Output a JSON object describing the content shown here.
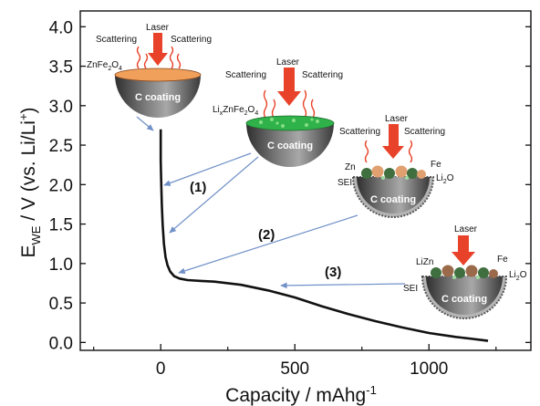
{
  "chart_data": {
    "type": "line",
    "xlabel": "Capacity / mAhg",
    "xlabel_sup": "-1",
    "ylabel_parts": [
      "E",
      "WE",
      "/ V (vs. Li/Li",
      "+",
      ")"
    ],
    "xlim": [
      -300,
      1380
    ],
    "ylim": [
      -0.1,
      4.2
    ],
    "x_ticks": [
      0,
      500,
      1000
    ],
    "y_ticks": [
      0.0,
      0.5,
      1.0,
      1.5,
      2.0,
      2.5,
      3.0,
      3.5,
      4.0
    ],
    "x_tick_labels": [
      "0",
      "500",
      "1000"
    ],
    "y_tick_labels": [
      "0.0",
      "0.5",
      "1.0",
      "1.5",
      "2.0",
      "2.5",
      "3.0",
      "3.5",
      "4.0"
    ],
    "grid": false,
    "series": [
      {
        "color": "#111111",
        "x": [
          0,
          0,
          2,
          4,
          7,
          12,
          18,
          25,
          35,
          50,
          70,
          100,
          150,
          200,
          300,
          400,
          500,
          600,
          700,
          800,
          900,
          1000,
          1100,
          1150,
          1200,
          1220
        ],
        "y": [
          2.7,
          2.3,
          2.0,
          1.75,
          1.5,
          1.25,
          1.08,
          0.98,
          0.9,
          0.84,
          0.81,
          0.79,
          0.78,
          0.77,
          0.73,
          0.66,
          0.57,
          0.46,
          0.36,
          0.27,
          0.19,
          0.12,
          0.07,
          0.05,
          0.03,
          0.02
        ]
      }
    ],
    "annotations": {
      "steps": [
        "(1)",
        "(2)",
        "(3)"
      ],
      "coating_label": "C coating",
      "laser": "Laser",
      "scattering": "Scattering",
      "panel1": {
        "material": "ZnFe",
        "sub1": "2",
        "mid": "O",
        "sub2": "4"
      },
      "panel2": {
        "material": "Li",
        "sub1": "x",
        "mid": "ZnFe",
        "sub2": "2",
        "end": "O",
        "sub3": "4"
      },
      "panel3": {
        "zn": "Zn",
        "fe": "Fe",
        "li2o": "Li",
        "li2o_sub": "2",
        "li2o_end": "O",
        "sei": "SEI"
      },
      "panel4": {
        "lizn": "LiZn",
        "fe": "Fe",
        "li2o": "Li",
        "li2o_sub": "2",
        "li2o_end": "O",
        "sei": "SEI"
      }
    },
    "colors": {
      "curve": "#111111",
      "axes": "#111111",
      "arrows": "#7090c8",
      "laser": "#e8432a",
      "scatter": "#e8432a",
      "bowl_dark": "#4a4a4a",
      "bowl_light": "#c9c9c9",
      "panel1_fill": "#f0a05a",
      "panel2_fill": "#2fb24a",
      "particle_zn": "#e0a070",
      "particle_fe": "#3f6f3f"
    }
  }
}
